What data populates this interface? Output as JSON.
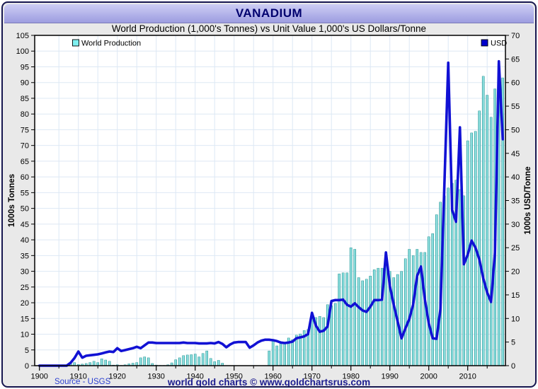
{
  "chart_data": {
    "type": "bar+line",
    "title": "VANADIUM",
    "subtitle": "World Production (1,000's Tonnes) vs Unit Value 1,000's US Dollars/Tonne",
    "grid": true,
    "x": [
      1900,
      1901,
      1902,
      1903,
      1904,
      1905,
      1906,
      1907,
      1908,
      1909,
      1910,
      1911,
      1912,
      1913,
      1914,
      1915,
      1916,
      1917,
      1918,
      1919,
      1920,
      1921,
      1922,
      1923,
      1924,
      1925,
      1926,
      1927,
      1928,
      1929,
      1930,
      1931,
      1932,
      1933,
      1934,
      1935,
      1936,
      1937,
      1938,
      1939,
      1940,
      1941,
      1942,
      1943,
      1944,
      1945,
      1946,
      1947,
      1948,
      1949,
      1950,
      1951,
      1952,
      1953,
      1954,
      1955,
      1956,
      1957,
      1958,
      1959,
      1960,
      1961,
      1962,
      1963,
      1964,
      1965,
      1966,
      1967,
      1968,
      1969,
      1970,
      1971,
      1972,
      1973,
      1974,
      1975,
      1976,
      1977,
      1978,
      1979,
      1980,
      1981,
      1982,
      1983,
      1984,
      1985,
      1986,
      1987,
      1988,
      1989,
      1990,
      1991,
      1992,
      1993,
      1994,
      1995,
      1996,
      1997,
      1998,
      1999,
      2000,
      2001,
      2002,
      2003,
      2004,
      2005,
      2006,
      2007,
      2008,
      2009,
      2010,
      2011,
      2012,
      2013,
      2014,
      2015,
      2016,
      2017,
      2018,
      2019
    ],
    "series": [
      {
        "name": "World Production",
        "type": "bar",
        "axis": "left",
        "color": "#58c6c6",
        "values": [
          0,
          0,
          0,
          0,
          0,
          0,
          0.1,
          0.3,
          0.6,
          1.0,
          0.4,
          0.5,
          0.7,
          1.0,
          1.4,
          1.0,
          2.2,
          1.8,
          1.4,
          0.2,
          0.3,
          0.1,
          0.3,
          0.6,
          0.8,
          1.0,
          2.5,
          2.8,
          2.5,
          0.7,
          0.2,
          0.1,
          0.1,
          0.3,
          0.9,
          1.9,
          2.5,
          3.2,
          3.4,
          3.5,
          3.7,
          2.8,
          3.9,
          4.7,
          2.3,
          1.3,
          1.7,
          0.8,
          0,
          0,
          0,
          0,
          0,
          0,
          0,
          0,
          0,
          0,
          0,
          4.7,
          7.9,
          6.3,
          7.5,
          7.4,
          8.8,
          8.3,
          9.7,
          10.1,
          11.2,
          11.5,
          14.9,
          15.3,
          15.7,
          15.3,
          19.4,
          19.1,
          19.8,
          29.2,
          29.5,
          29.5,
          37.5,
          37.0,
          28.0,
          27.0,
          27.5,
          28.5,
          30.5,
          31.0,
          31.0,
          36.0,
          30.0,
          28.0,
          29.0,
          30.0,
          34.0,
          37.0,
          35.0,
          37.0,
          36.0,
          36.0,
          41.0,
          42.0,
          48.0,
          52.0,
          54.0,
          56.5,
          58.0,
          59.0,
          56.0,
          54.0,
          71.5,
          74.0,
          74.5,
          81.0,
          92.0,
          86.0,
          79.0,
          88.0,
          96.0,
          91.5
        ]
      },
      {
        "name": "USD",
        "type": "line",
        "axis": "right",
        "color": "#1111d4",
        "values": [
          0,
          0,
          0,
          0,
          0,
          0,
          0,
          0,
          0.6,
          1.6,
          3.0,
          1.7,
          2.1,
          2.2,
          2.3,
          2.4,
          2.6,
          2.8,
          3.0,
          2.9,
          3.7,
          3.1,
          3.3,
          3.5,
          3.7,
          4.0,
          3.7,
          4.3,
          4.9,
          4.9,
          4.8,
          4.8,
          4.8,
          4.8,
          4.8,
          4.8,
          4.8,
          4.9,
          4.8,
          4.8,
          4.8,
          4.7,
          4.7,
          4.7,
          4.8,
          4.7,
          5.0,
          4.6,
          3.9,
          4.5,
          4.9,
          5.0,
          5.0,
          5.0,
          3.8,
          4.3,
          4.9,
          5.3,
          5.5,
          5.5,
          5.4,
          5.2,
          4.9,
          4.8,
          4.9,
          5.1,
          5.8,
          6.0,
          6.2,
          6.7,
          11.2,
          8.5,
          7.2,
          7.4,
          8.3,
          13.7,
          13.9,
          13.9,
          14.0,
          12.9,
          12.5,
          13.2,
          12.4,
          11.7,
          11.4,
          12.5,
          13.9,
          13.9,
          14.0,
          24.0,
          16.9,
          12.9,
          9.4,
          5.8,
          7.9,
          9.9,
          13.0,
          19.0,
          21.0,
          14.0,
          9.0,
          5.8,
          5.7,
          12.0,
          38.0,
          64.2,
          33.0,
          30.5,
          50.5,
          21.5,
          23.5,
          26.5,
          25.0,
          22.5,
          18.5,
          15.5,
          13.5,
          24.0,
          64.5,
          48.0
        ]
      }
    ],
    "left_axis": {
      "label": "1000s Tonnes",
      "min": 0,
      "max": 105,
      "tick_step": 5
    },
    "right_axis": {
      "label": "1000s USD/Tonne",
      "min": 0,
      "max": 70,
      "tick_step": 5
    },
    "x_axis": {
      "tick_labels": [
        "1900",
        "1910",
        "1920",
        "1930",
        "1940",
        "1950",
        "1960",
        "1970",
        "1980",
        "1990",
        "2000",
        "2010"
      ]
    },
    "legend": [
      {
        "label": "World Production",
        "swatch_color": "#7ff0f0",
        "position": "top-left"
      },
      {
        "label": "USD",
        "swatch_color": "#0000cc",
        "position": "top-right"
      }
    ],
    "colors": {
      "bar_fill": "#58c6c6",
      "bar_edge": "#238f8f",
      "line": "#1111d4",
      "gridline": "#dde8f4",
      "header_text": "#00006e",
      "frame": "#16164f"
    }
  },
  "footer": {
    "source": "Source - USGS",
    "brand": "world gold charts © www.goldchartsrus.com"
  }
}
